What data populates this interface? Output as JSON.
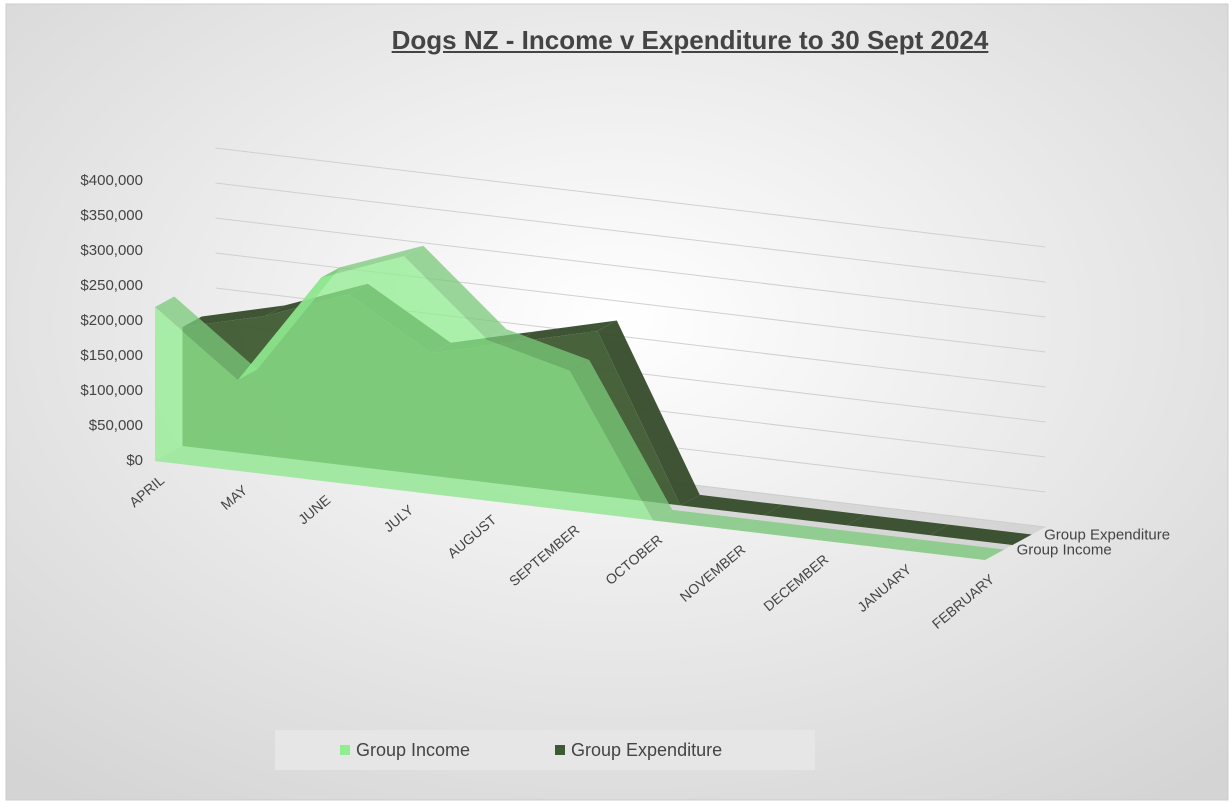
{
  "chart_data": {
    "type": "area3d",
    "title": "Dogs NZ - Income v Expenditure to 30 Sept 2024",
    "categories": [
      "APRIL",
      "MAY",
      "JUNE",
      "JULY",
      "AUGUST",
      "SEPTEMBER",
      "OCTOBER",
      "NOVEMBER",
      "DECEMBER",
      "JANUARY",
      "FEBRUARY"
    ],
    "series": [
      {
        "name": "Group Income",
        "color": "#90ee90",
        "values": [
          220000,
          130000,
          290000,
          335000,
          230000,
          200000,
          0,
          0,
          0,
          0,
          0
        ]
      },
      {
        "name": "Group Expenditure",
        "color": "#3e5a32",
        "values": [
          170000,
          200000,
          245000,
          175000,
          205000,
          235000,
          0,
          0,
          0,
          0,
          0
        ]
      }
    ],
    "ylim": [
      0,
      400000
    ],
    "yticks": [
      {
        "value": 0,
        "label": "$0"
      },
      {
        "value": 50000,
        "label": "$50,000"
      },
      {
        "value": 100000,
        "label": "$100,000"
      },
      {
        "value": 150000,
        "label": "$150,000"
      },
      {
        "value": 200000,
        "label": "$200,000"
      },
      {
        "value": 250000,
        "label": "$250,000"
      },
      {
        "value": 300000,
        "label": "$300,000"
      },
      {
        "value": 350000,
        "label": "$350,000"
      },
      {
        "value": 400000,
        "label": "$400,000"
      }
    ],
    "grid": true,
    "legend": "bottom"
  }
}
